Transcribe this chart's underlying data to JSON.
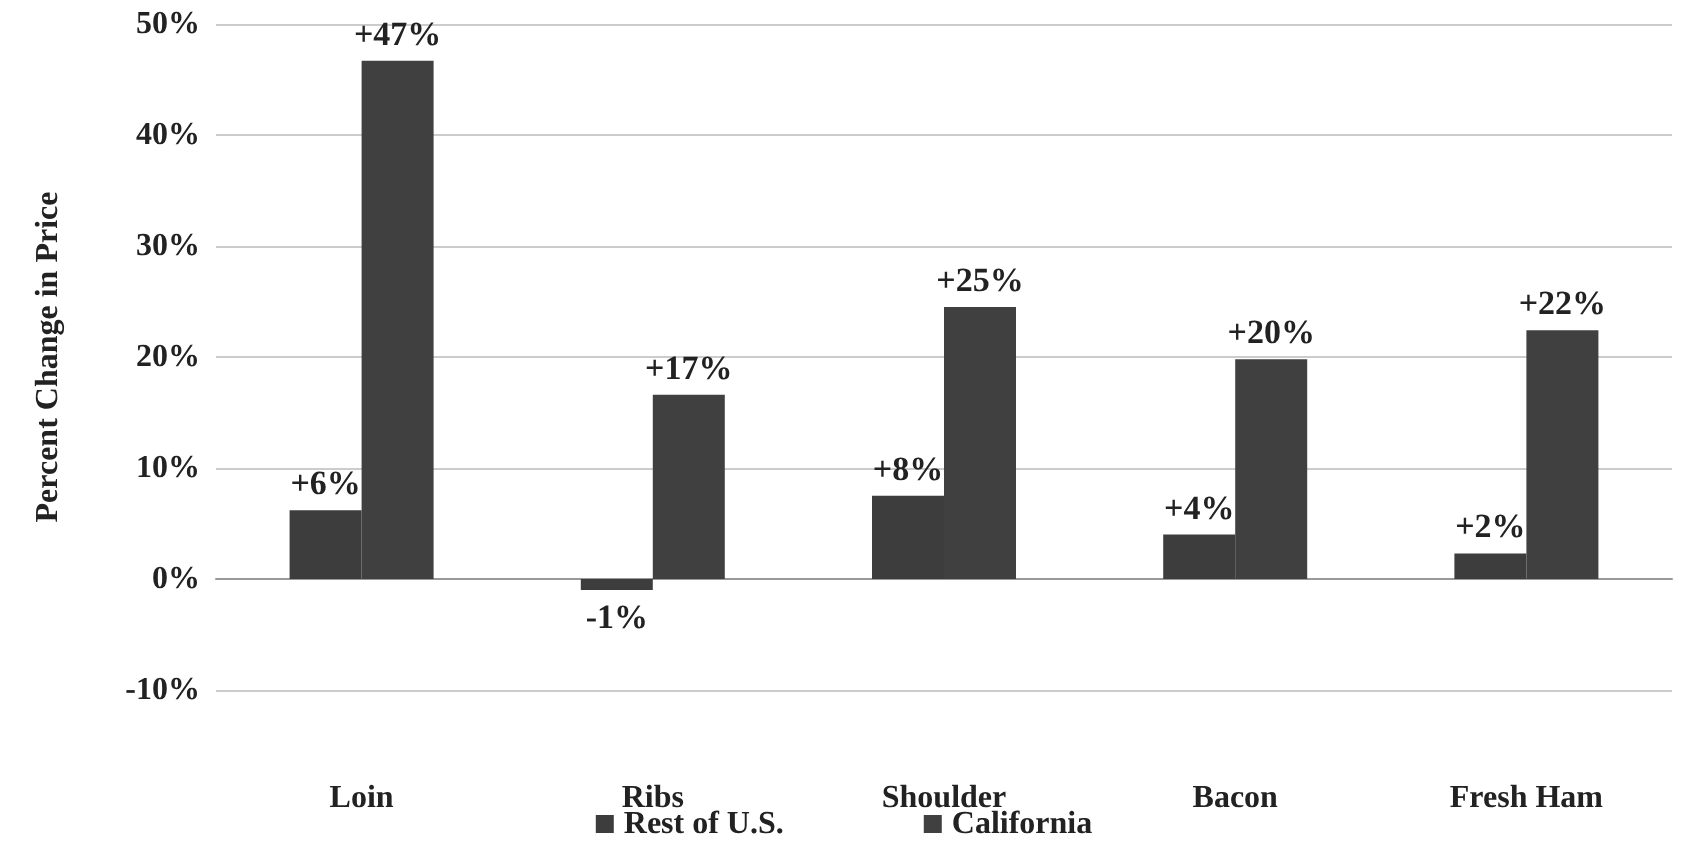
{
  "chart_data": {
    "type": "bar",
    "ylabel": "Percent Change in Price",
    "categories": [
      "Loin",
      "Ribs",
      "Shoulder",
      "Bacon",
      "Fresh Ham"
    ],
    "series": [
      {
        "name": "Rest of U.S.",
        "color": "#3d3d3d",
        "values": [
          6.2,
          -1,
          7.5,
          4,
          2.3
        ],
        "value_labels": [
          "+6%",
          "-1%",
          "+8%",
          "+4%",
          "+2%"
        ]
      },
      {
        "name": "California",
        "color": "#404040",
        "values": [
          46.7,
          16.6,
          24.5,
          19.8,
          22.4
        ],
        "value_labels": [
          "+47%",
          "+17%",
          "+25%",
          "+20%",
          "+22%"
        ]
      }
    ],
    "ylim": [
      -10,
      50
    ],
    "yticks": [
      {
        "value": -10,
        "label": "-10%"
      },
      {
        "value": 0,
        "label": "0%"
      },
      {
        "value": 10,
        "label": "10%"
      },
      {
        "value": 20,
        "label": "20%"
      },
      {
        "value": 30,
        "label": "30%"
      },
      {
        "value": 40,
        "label": "40%"
      },
      {
        "value": 50,
        "label": "50%"
      }
    ],
    "grid": "y",
    "legend": "bottom"
  }
}
